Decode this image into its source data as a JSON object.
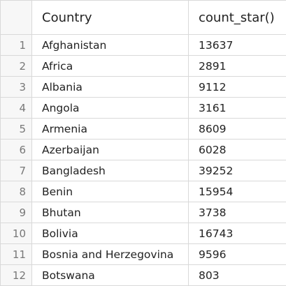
{
  "table": {
    "columns": [
      "Country",
      "count_star()"
    ],
    "rows": [
      {
        "n": "1",
        "country": "Afghanistan",
        "count": "13637"
      },
      {
        "n": "2",
        "country": "Africa",
        "count": "2891"
      },
      {
        "n": "3",
        "country": "Albania",
        "count": "9112"
      },
      {
        "n": "4",
        "country": "Angola",
        "count": "3161"
      },
      {
        "n": "5",
        "country": "Armenia",
        "count": "8609"
      },
      {
        "n": "6",
        "country": "Azerbaijan",
        "count": "6028"
      },
      {
        "n": "7",
        "country": "Bangladesh",
        "count": "39252"
      },
      {
        "n": "8",
        "country": "Benin",
        "count": "15954"
      },
      {
        "n": "9",
        "country": "Bhutan",
        "count": "3738"
      },
      {
        "n": "10",
        "country": "Bolivia",
        "count": "16743"
      },
      {
        "n": "11",
        "country": "Bosnia and Herzegovina",
        "count": "9596"
      },
      {
        "n": "12",
        "country": "Botswana",
        "count": "803"
      }
    ]
  }
}
